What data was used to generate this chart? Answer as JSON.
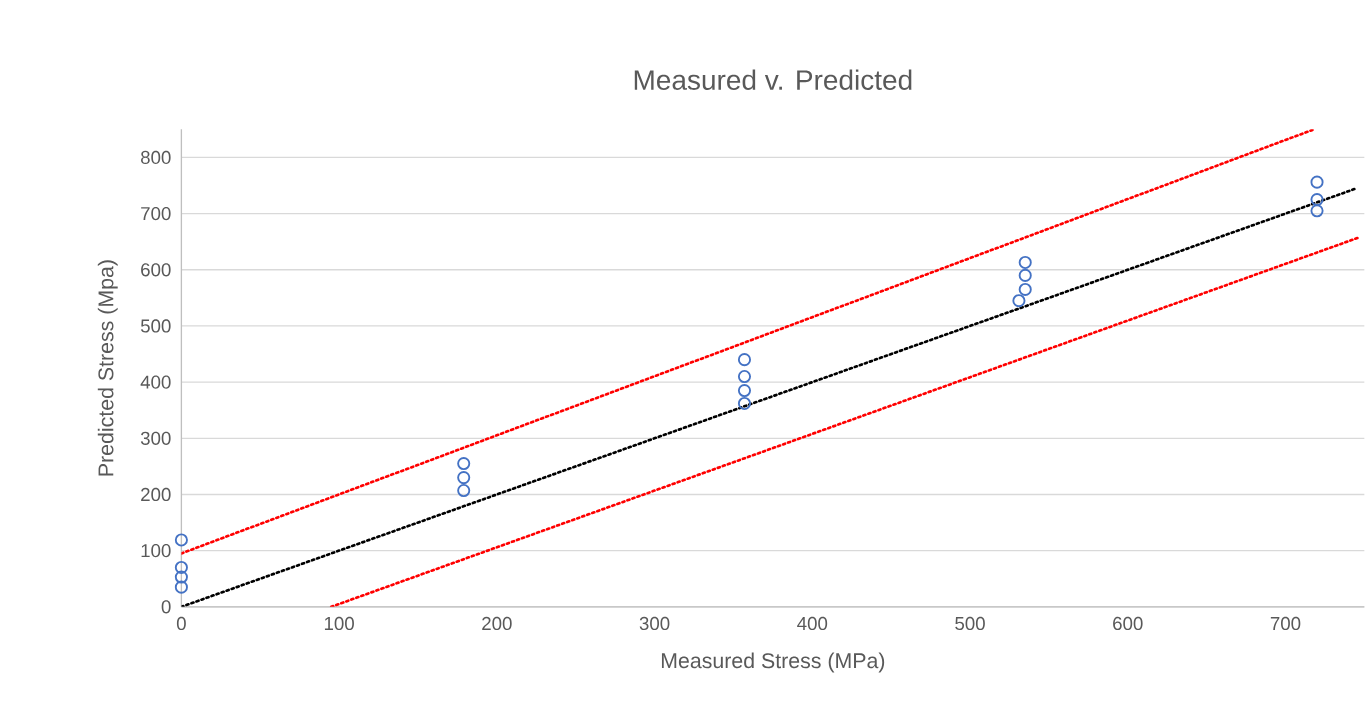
{
  "chart_data": {
    "type": "scatter",
    "title": "Measured v. Predicted",
    "xlabel": "Measured Stress (MPa)",
    "ylabel": "Predicted Stress (Mpa)",
    "xlim": [
      0,
      750
    ],
    "ylim": [
      0,
      850
    ],
    "xticks": [
      0,
      100,
      200,
      300,
      400,
      500,
      600,
      700
    ],
    "yticks": [
      0,
      100,
      200,
      300,
      400,
      500,
      600,
      700,
      800
    ],
    "grid": "y",
    "legend": false,
    "marker": "circle",
    "series": [
      {
        "color": "#4472c4",
        "x": [
          0,
          0,
          0,
          0,
          179,
          179,
          179,
          357,
          357,
          357,
          357,
          535,
          535,
          535,
          531,
          720,
          720,
          720
        ],
        "values": [
          119,
          35,
          53,
          70,
          207,
          230,
          255,
          362,
          385,
          410,
          440,
          565,
          590,
          613,
          545,
          705,
          725,
          756
        ]
      },
      {
        "type": "line",
        "marker": "none",
        "line_style": "dotted",
        "color": "#000000",
        "x": [
          0,
          745
        ],
        "values": [
          0,
          745
        ]
      },
      {
        "type": "line",
        "marker": "none",
        "line_style": "dotted",
        "color": "#ff0000",
        "x": [
          0,
          718
        ],
        "values": [
          95,
          850
        ]
      },
      {
        "type": "line",
        "marker": "none",
        "line_style": "dotted",
        "color": "#ff0000",
        "x": [
          95,
          747
        ],
        "values": [
          0,
          658
        ]
      }
    ]
  }
}
